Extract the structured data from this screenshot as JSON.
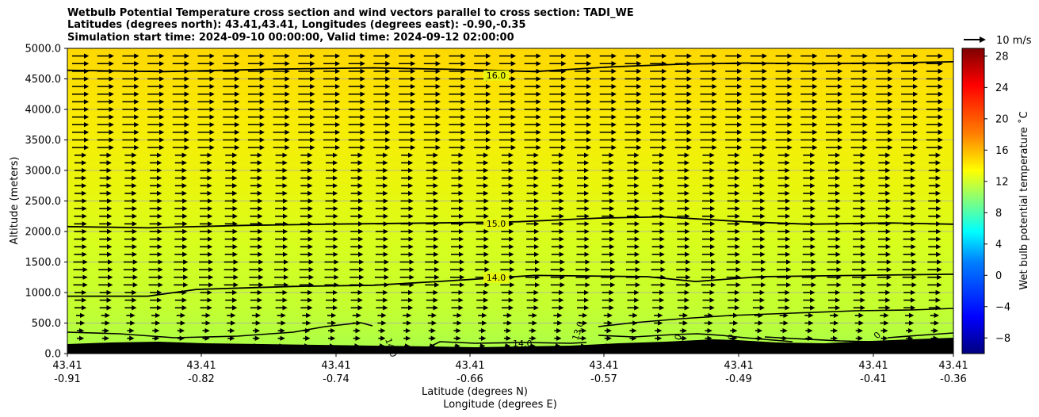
{
  "chart_data": {
    "type": "heatmap",
    "title": [
      "Wetbulb Potential Temperature cross section and wind vectors parallel to cross section: TADI_WE",
      "Latitudes (degrees north): 43.41,43.41, Longitudes (degrees east): -0.90,-0.35",
      "Simulation start time: 2024-09-10 00:00:00, Valid time: 2024-09-12 02:00:00"
    ],
    "xlabel": "Latitude (degrees N)",
    "xlabel2": "Longitude (degrees E)",
    "ylabel": "Altitude (meters)",
    "ylim": [
      0,
      5000
    ],
    "y_ticks": [
      "0.0",
      "500.0",
      "1000.0",
      "1500.0",
      "2000.0",
      "2500.0",
      "3000.0",
      "3500.0",
      "4000.0",
      "4500.0",
      "5000.0"
    ],
    "x_ticks": [
      {
        "lat": "43.41",
        "lon": "-0.91"
      },
      {
        "lat": "43.41",
        "lon": "-0.82"
      },
      {
        "lat": "43.41",
        "lon": "-0.74"
      },
      {
        "lat": "43.41",
        "lon": "-0.66"
      },
      {
        "lat": "43.41",
        "lon": "-0.57"
      },
      {
        "lat": "43.41",
        "lon": "-0.49"
      },
      {
        "lat": "43.41",
        "lon": "-0.41"
      },
      {
        "lat": "43.41",
        "lon": "-0.36"
      }
    ],
    "xlim": [
      -0.91,
      -0.36
    ],
    "grid": "horizontal",
    "colormap": "jet",
    "colorbar": {
      "label": "Wet bulb potential temperature $^\\circ$C",
      "label_text": "Wet bulb potential temperature ˚C",
      "range": [
        -10,
        29
      ],
      "ticks": [
        "28",
        "24",
        "20",
        "16",
        "12",
        "8",
        "4",
        "0",
        "−4",
        "−8"
      ]
    },
    "quiver_key": "10 m/s",
    "contours": [
      {
        "level": "16.0",
        "label": "16.0",
        "altitude_m": [
          4640,
          4620,
          4660,
          4680,
          4650,
          4620,
          4700,
          4740,
          4760,
          4750,
          4760,
          4780
        ],
        "lon": [
          -0.91,
          -0.85,
          -0.78,
          -0.72,
          -0.66,
          -0.62,
          -0.57,
          -0.53,
          -0.49,
          -0.45,
          -0.4,
          -0.36
        ]
      },
      {
        "level": "15.0",
        "label": "15.0",
        "altitude_m": [
          2080,
          2060,
          2100,
          2120,
          2140,
          2160,
          2220,
          2240,
          2160,
          2120,
          2140,
          2120
        ],
        "lon": [
          -0.91,
          -0.86,
          -0.8,
          -0.75,
          -0.68,
          -0.63,
          -0.58,
          -0.54,
          -0.49,
          -0.45,
          -0.4,
          -0.36
        ]
      },
      {
        "level": "14.0",
        "label": "14.0",
        "altitude_m": [
          940,
          940,
          1050,
          1100,
          1120,
          1180,
          1280,
          1260,
          1180,
          1260,
          1280,
          1300
        ],
        "lon": [
          -0.91,
          -0.86,
          -0.83,
          -0.77,
          -0.72,
          -0.68,
          -0.62,
          -0.55,
          -0.52,
          -0.48,
          -0.42,
          -0.36
        ]
      }
    ],
    "contour_labels_low": [
      "14.0",
      "13.0",
      "14.0",
      "0",
      "0",
      "0"
    ],
    "terrain": "black filled terrain along the bottom, 100–250 m",
    "field_description_colors": {
      "low": "#aaff44",
      "mid": "#ddff22",
      "high": "#ffe000"
    }
  }
}
